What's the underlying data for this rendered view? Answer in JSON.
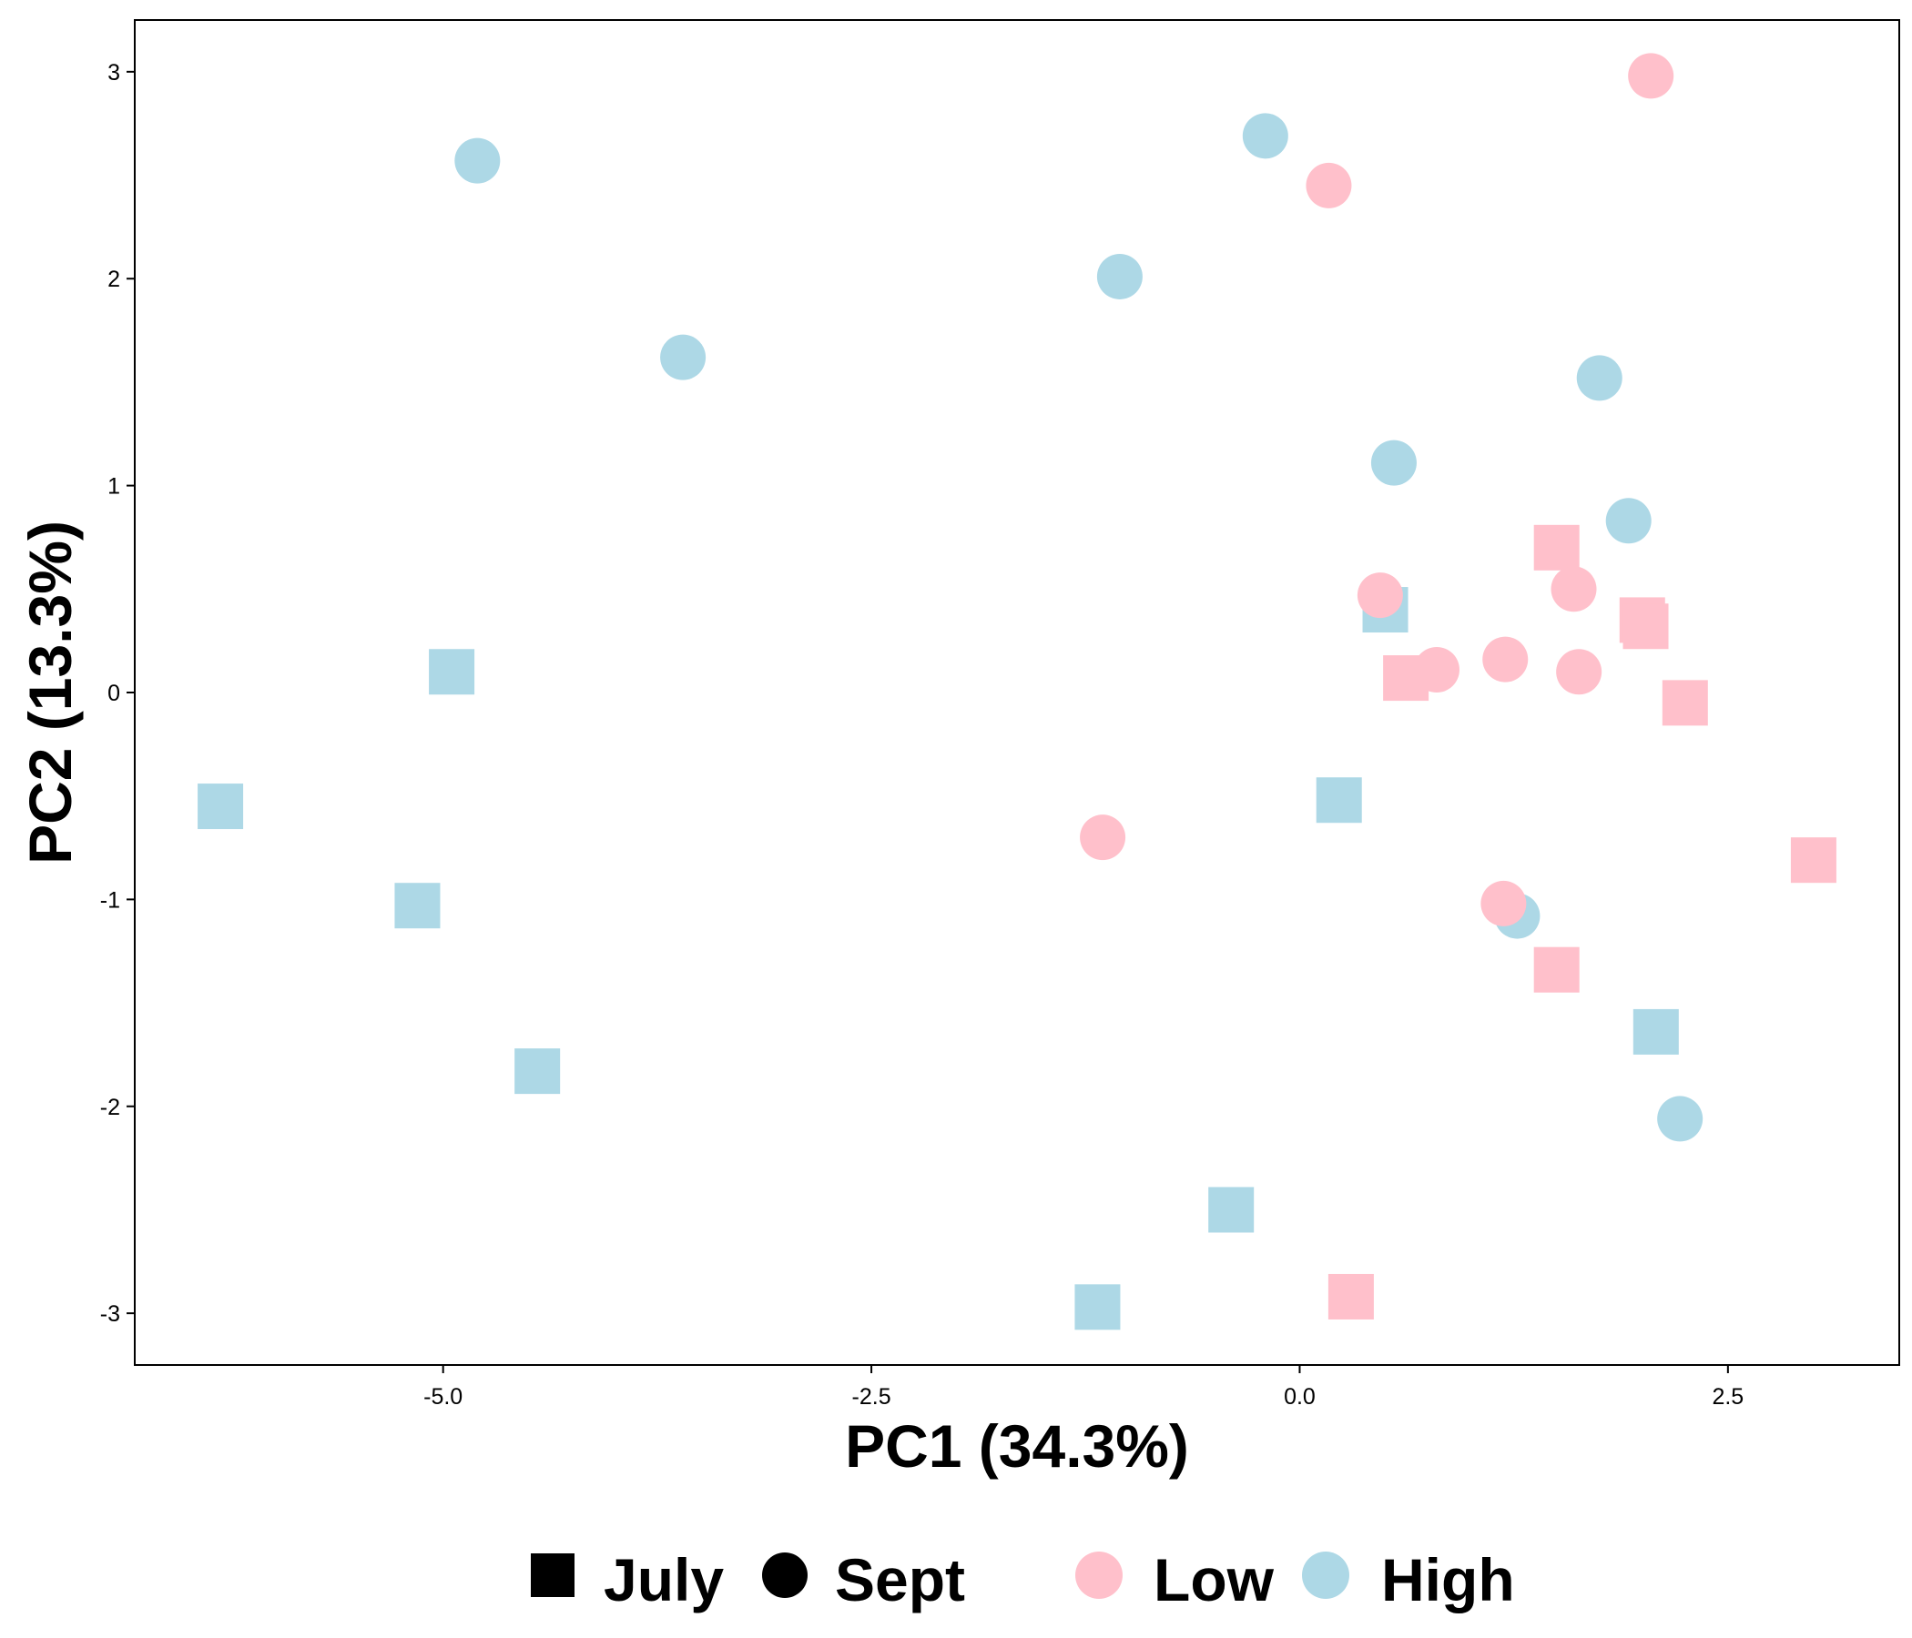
{
  "chart_data": {
    "type": "scatter",
    "xlabel": "PC1 (34.3%)",
    "ylabel": "PC2 (13.3%)",
    "xlim": [
      -6.8,
      3.5
    ],
    "ylim": [
      -3.25,
      3.25
    ],
    "x_ticks": [
      -5.0,
      -2.5,
      0.0,
      2.5
    ],
    "x_tick_labels": [
      "-5.0",
      "-2.5",
      "0.0",
      "2.5"
    ],
    "y_ticks": [
      -3,
      -2,
      -1,
      0,
      1,
      2,
      3
    ],
    "y_tick_labels": [
      "-3",
      "-2",
      "-1",
      "0",
      "1",
      "2",
      "3"
    ],
    "grid": false,
    "legend_position": "bottom",
    "shape_legend": [
      {
        "label": "July",
        "shape": "square"
      },
      {
        "label": "Sept",
        "shape": "circle"
      }
    ],
    "color_legend": [
      {
        "label": "Low",
        "color": "#FFC0CB"
      },
      {
        "label": "High",
        "color": "#ADD8E6"
      }
    ],
    "series": [
      {
        "name": "July",
        "group": "High",
        "shape": "square",
        "color": "#ADD8E6",
        "points": [
          [
            -6.3,
            -0.55
          ],
          [
            -4.95,
            0.1
          ],
          [
            -5.15,
            -1.03
          ],
          [
            -4.45,
            -1.83
          ],
          [
            -0.4,
            -2.5
          ],
          [
            -1.18,
            -2.97
          ],
          [
            0.23,
            -0.52
          ],
          [
            0.5,
            0.4
          ],
          [
            2.08,
            -1.64
          ]
        ]
      },
      {
        "name": "July",
        "group": "Low",
        "shape": "square",
        "color": "#FFC0CB",
        "points": [
          [
            1.5,
            0.7
          ],
          [
            2.0,
            0.35
          ],
          [
            2.02,
            0.32
          ],
          [
            0.62,
            0.07
          ],
          [
            2.25,
            -0.05
          ],
          [
            3.0,
            -0.81
          ],
          [
            1.5,
            -1.34
          ],
          [
            0.3,
            -2.92
          ]
        ]
      },
      {
        "name": "Sept",
        "group": "High",
        "shape": "circle",
        "color": "#ADD8E6",
        "points": [
          [
            -4.8,
            2.57
          ],
          [
            -3.6,
            1.62
          ],
          [
            -1.05,
            2.01
          ],
          [
            -0.2,
            2.69
          ],
          [
            0.55,
            1.11
          ],
          [
            1.75,
            1.52
          ],
          [
            1.92,
            0.83
          ],
          [
            1.27,
            -1.08
          ],
          [
            2.22,
            -2.06
          ]
        ]
      },
      {
        "name": "Sept",
        "group": "Low",
        "shape": "circle",
        "color": "#FFC0CB",
        "points": [
          [
            2.05,
            2.98
          ],
          [
            0.17,
            2.45
          ],
          [
            0.47,
            0.47
          ],
          [
            0.8,
            0.11
          ],
          [
            1.2,
            0.16
          ],
          [
            1.6,
            0.5
          ],
          [
            1.63,
            0.1
          ],
          [
            -1.15,
            -0.7
          ],
          [
            1.19,
            -1.02
          ]
        ]
      }
    ]
  }
}
